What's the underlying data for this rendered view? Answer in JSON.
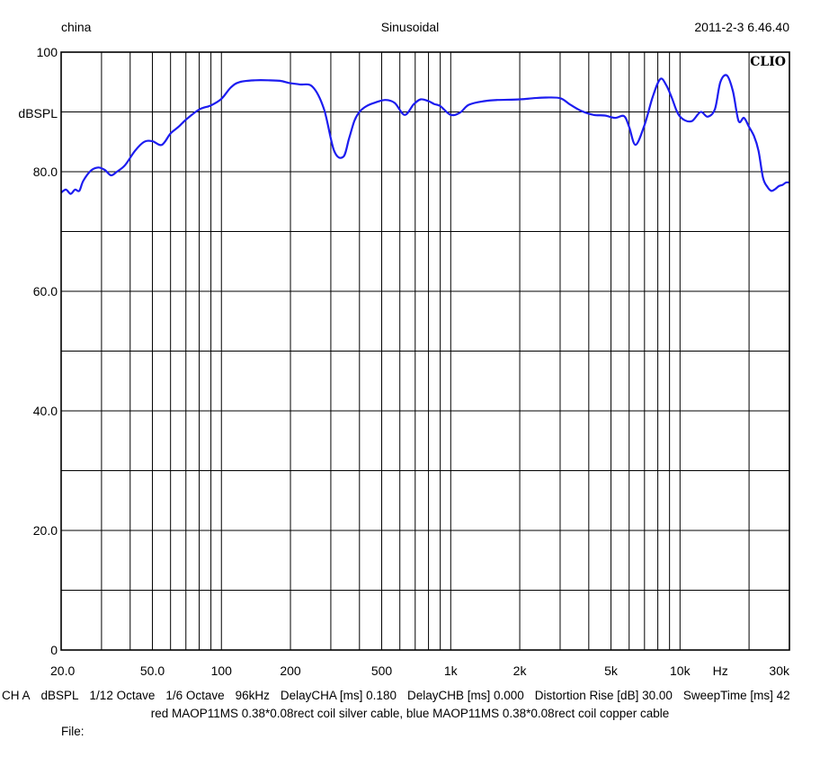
{
  "header": {
    "left": "china",
    "center": "Sinusoidal",
    "right": "2011-2-3 6.46.40"
  },
  "brand": "CLIO",
  "info_items": [
    "CH A",
    "dBSPL",
    "1/12 Octave",
    "1/6 Octave",
    "96kHz",
    "DelayCHA [ms] 0.180",
    "DelayCHB [ms] 0.000",
    "Distortion Rise [dB] 30.00",
    "SweepTime [ms] 42"
  ],
  "caption": "red MAOP11MS 0.38*0.08rect coil silver cable, blue MAOP11MS 0.38*0.08rect coil copper cable",
  "file_label": "File:",
  "colors": {
    "trace": "#1c1cf0",
    "grid": "#000000"
  },
  "chart_data": {
    "type": "line",
    "x_scale": "log",
    "xlim": [
      20,
      30000
    ],
    "ylim": [
      0,
      100
    ],
    "ylabel": "dBSPL",
    "x_tick_labels": [
      {
        "v": 20,
        "label": "20.0"
      },
      {
        "v": 50,
        "label": "50.0"
      },
      {
        "v": 100,
        "label": "100"
      },
      {
        "v": 200,
        "label": "200"
      },
      {
        "v": 500,
        "label": "500"
      },
      {
        "v": 1000,
        "label": "1k"
      },
      {
        "v": 2000,
        "label": "2k"
      },
      {
        "v": 5000,
        "label": "5k"
      },
      {
        "v": 10000,
        "label": "10k"
      },
      {
        "v": 30000,
        "label": "30k"
      }
    ],
    "x_unit_label": "Hz",
    "x_unit_position": 15000,
    "y_tick_labels": [
      {
        "v": 100,
        "label": "100"
      },
      {
        "v": 80,
        "label": "80.0"
      },
      {
        "v": 60,
        "label": "60.0"
      },
      {
        "v": 40,
        "label": "40.0"
      },
      {
        "v": 20,
        "label": "20.0"
      },
      {
        "v": 0,
        "label": "0"
      }
    ],
    "y_gridlines": [
      0,
      10,
      20,
      30,
      40,
      50,
      60,
      70,
      80,
      90,
      100
    ],
    "x_gridlines": [
      20,
      30,
      40,
      50,
      60,
      70,
      80,
      90,
      100,
      200,
      300,
      400,
      500,
      600,
      700,
      800,
      900,
      1000,
      2000,
      3000,
      4000,
      5000,
      6000,
      7000,
      8000,
      9000,
      10000,
      20000,
      30000
    ],
    "series": [
      {
        "color": "#1c1cf0",
        "x": [
          20,
          21,
          22,
          23,
          24,
          25,
          27,
          29,
          31,
          33,
          35,
          38,
          42,
          46,
          50,
          55,
          60,
          65,
          70,
          80,
          90,
          100,
          110,
          120,
          140,
          160,
          180,
          200,
          220,
          250,
          280,
          310,
          340,
          360,
          380,
          400,
          430,
          470,
          520,
          570,
          630,
          690,
          740,
          800,
          850,
          900,
          1000,
          1100,
          1200,
          1400,
          1600,
          2000,
          2300,
          2600,
          3000,
          3300,
          3700,
          4200,
          4700,
          5200,
          5700,
          6000,
          6400,
          7000,
          7600,
          8200,
          8700,
          9200,
          9800,
          10500,
          11300,
          12300,
          13200,
          14200,
          15000,
          16000,
          17000,
          18000,
          19000,
          20000,
          21000,
          22000,
          23000,
          24000,
          25000,
          26000,
          27000,
          28000,
          29000,
          30000
        ],
        "y": [
          76.5,
          77,
          76.3,
          77,
          76.8,
          78.5,
          80.2,
          80.7,
          80.3,
          79.4,
          80,
          81.1,
          83.5,
          85,
          85.1,
          84.5,
          86.4,
          87.5,
          88.7,
          90.4,
          91.1,
          92.2,
          94.1,
          95,
          95.3,
          95.3,
          95.2,
          94.8,
          94.6,
          94.2,
          90.5,
          83.5,
          82.5,
          85.5,
          88.5,
          90,
          91,
          91.6,
          92,
          91.5,
          89.5,
          91.3,
          92.1,
          91.8,
          91.3,
          91,
          89.5,
          89.9,
          91.2,
          91.8,
          92,
          92.1,
          92.3,
          92.4,
          92.3,
          91.3,
          90.2,
          89.5,
          89.4,
          89,
          89.3,
          87.5,
          84.5,
          87.8,
          92.5,
          95.5,
          94.5,
          92.4,
          89.7,
          88.6,
          88.5,
          90,
          89.2,
          90.5,
          95,
          96.1,
          93.5,
          88.5,
          89,
          87.5,
          86,
          83.5,
          79,
          77.5,
          76.8,
          77.1,
          77.6,
          77.8,
          78.2,
          78.2
        ]
      }
    ]
  }
}
